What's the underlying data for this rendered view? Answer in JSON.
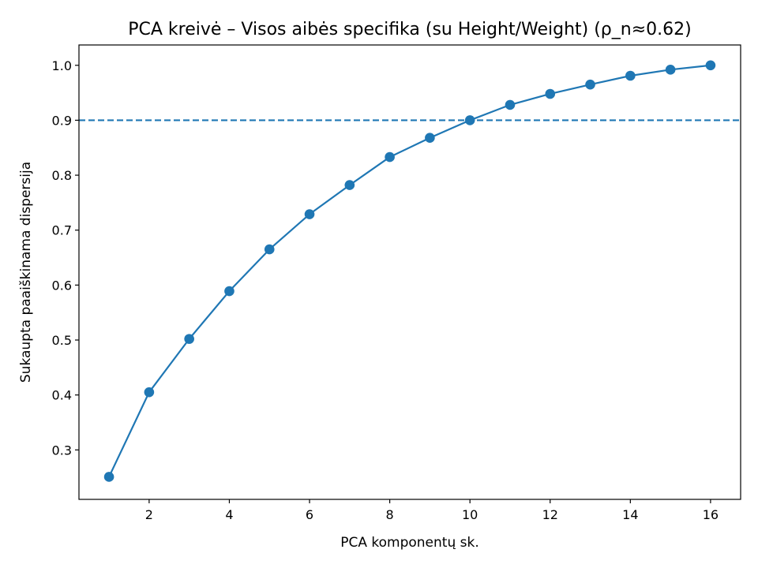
{
  "chart_data": {
    "type": "line",
    "title": "PCA kreivė – Visos aibės specifika (su Height/Weight) (ρ_n≈0.62)",
    "xlabel": "PCA komponentų sk.",
    "ylabel": "Sukaupta paaiškinama dispersija",
    "xlim": [
      0.25,
      16.75
    ],
    "ylim": [
      0.21,
      1.037
    ],
    "xticks": [
      2,
      4,
      6,
      8,
      10,
      12,
      14,
      16
    ],
    "yticks": [
      0.3,
      0.4,
      0.5,
      0.6,
      0.7,
      0.8,
      0.9,
      1.0
    ],
    "ytick_labels": [
      "0.3",
      "0.4",
      "0.5",
      "0.6",
      "0.7",
      "0.8",
      "0.9",
      "1.0"
    ],
    "grid": false,
    "series": [
      {
        "color": "#1f77b4",
        "marker": "circle",
        "x": [
          1,
          2,
          3,
          4,
          5,
          6,
          7,
          8,
          9,
          10,
          11,
          12,
          13,
          14,
          15,
          16
        ],
        "y": [
          0.251,
          0.405,
          0.502,
          0.589,
          0.665,
          0.729,
          0.782,
          0.833,
          0.868,
          0.9,
          0.928,
          0.948,
          0.965,
          0.981,
          0.992,
          1.0
        ]
      }
    ],
    "reference_lines": [
      {
        "orientation": "horizontal",
        "y": 0.9,
        "style": "dashed",
        "color": "#1f77b4"
      }
    ]
  }
}
